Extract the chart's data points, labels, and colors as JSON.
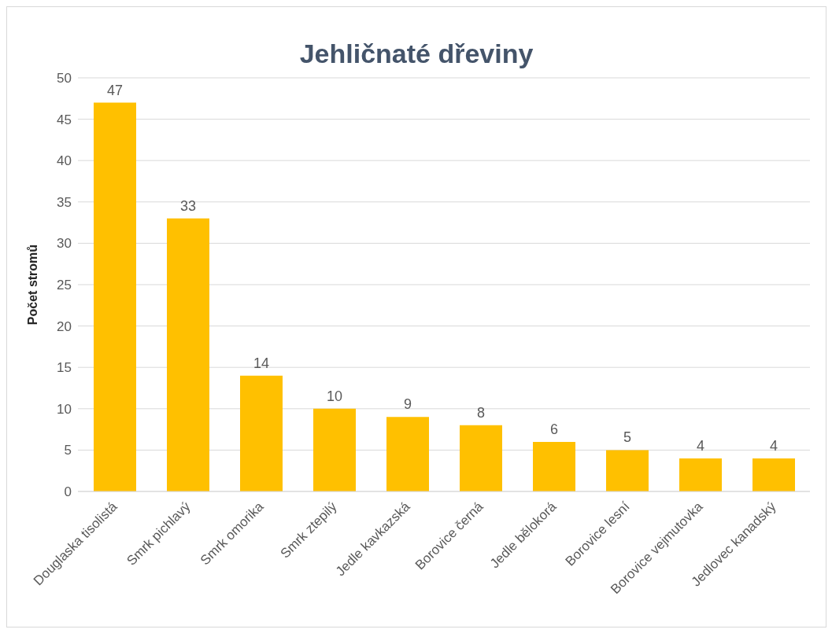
{
  "chart_data": {
    "type": "bar",
    "title": "Jehličnaté dřeviny",
    "ylabel": "Počet stromů",
    "categories": [
      "Douglaska tisolistá",
      "Smrk pichlavý",
      "Smrk omorika",
      "Smrk ztepilý",
      "Jedle kavkazská",
      "Borovice černá",
      "Jedle bělokorá",
      "Borovice lesní",
      "Borovice vejmutovka",
      "Jedlovec kanadský"
    ],
    "values": [
      47,
      33,
      14,
      10,
      9,
      8,
      6,
      5,
      4,
      4
    ],
    "color": "#ffc000",
    "ylim": [
      0,
      50
    ],
    "yticks": [
      0,
      5,
      10,
      15,
      20,
      25,
      30,
      35,
      40,
      45,
      50
    ],
    "grid": "y",
    "data_labels": true
  }
}
